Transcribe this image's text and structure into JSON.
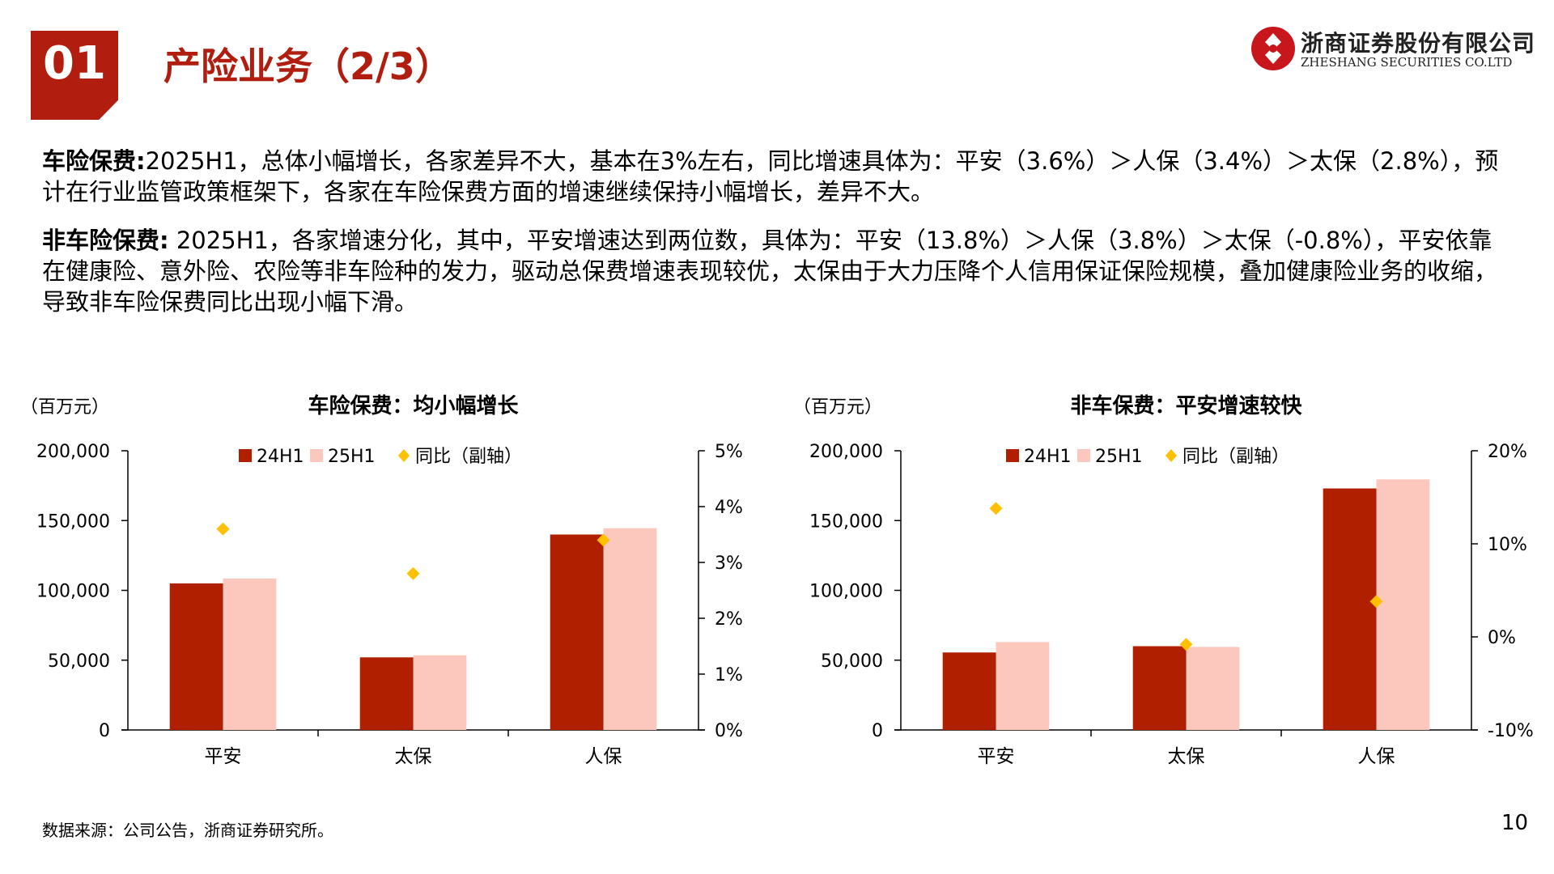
{
  "header": {
    "section_number": "01",
    "title": "产险业务（2/3）",
    "logo_cn": "浙商证券股份有限公司",
    "logo_en": "ZHESHANG SECURITIES CO.LTD"
  },
  "body": {
    "para1_label": "车险保费:",
    "para1_text": "2025H1，总体小幅增长，各家差异不大，基本在3%左右，同比增速具体为：平安（3.6%）＞人保（3.4%）＞太保（2.8%），预计在行业监管政策框架下，各家在车险保费方面的增速继续保持小幅增长，差异不大。",
    "para2_label": "非车险保费:",
    "para2_text": " 2025H1，各家增速分化，其中，平安增速达到两位数，具体为：平安（13.8%）＞人保（3.8%）＞太保（-0.8%），平安依靠在健康险、意外险、农险等非车险种的发力，驱动总保费增速表现较优，太保由于大力压降个人信用保证保险规模，叠加健康险业务的收缩，导致非车险保费同比出现小幅下滑。"
  },
  "colors": {
    "brand_red": "#b11e10",
    "bar_24h1": "#b01f00",
    "bar_25h1": "#fcc8bd",
    "yoy_marker": "#ffc000"
  },
  "chart_data": [
    {
      "type": "bar",
      "title": "车险保费：均小幅增长",
      "unit_label": "（百万元）",
      "categories": [
        "平安",
        "太保",
        "人保"
      ],
      "series": [
        {
          "name": "24H1",
          "values": [
            105000,
            52000,
            140000
          ]
        },
        {
          "name": "25H1",
          "values": [
            108500,
            53500,
            144500
          ]
        }
      ],
      "line_series": {
        "name": "同比（副轴）",
        "values": [
          3.6,
          2.8,
          3.4
        ],
        "axis": "secondary",
        "marker": "diamond"
      },
      "ylim": [
        0,
        200000
      ],
      "y_ticks": [
        0,
        50000,
        100000,
        150000,
        200000
      ],
      "y_tick_labels": [
        "0",
        "50,000",
        "100,000",
        "150,000",
        "200,000"
      ],
      "y2lim": [
        0,
        5
      ],
      "y2_ticks": [
        0,
        1,
        2,
        3,
        4,
        5
      ],
      "y2_tick_labels": [
        "0%",
        "1%",
        "2%",
        "3%",
        "4%",
        "5%"
      ],
      "legend": "top",
      "grid": false
    },
    {
      "type": "bar",
      "title": "非车保费：平安增速较快",
      "unit_label": "（百万元）",
      "categories": [
        "平安",
        "太保",
        "人保"
      ],
      "series": [
        {
          "name": "24H1",
          "values": [
            55500,
            60000,
            173000
          ]
        },
        {
          "name": "25H1",
          "values": [
            63000,
            59500,
            179500
          ]
        }
      ],
      "line_series": {
        "name": "同比（副轴）",
        "values": [
          13.8,
          -0.8,
          3.8
        ],
        "axis": "secondary",
        "marker": "diamond"
      },
      "ylim": [
        0,
        200000
      ],
      "y_ticks": [
        0,
        50000,
        100000,
        150000,
        200000
      ],
      "y_tick_labels": [
        "0",
        "50,000",
        "100,000",
        "150,000",
        "200,000"
      ],
      "y2lim": [
        -10,
        20
      ],
      "y2_ticks": [
        -10,
        0,
        10,
        20
      ],
      "y2_tick_labels": [
        "-10%",
        "0%",
        "10%",
        "20%"
      ],
      "legend": "top",
      "grid": false
    }
  ],
  "footer": {
    "source": "数据来源：公司公告，浙商证券研究所。",
    "page_number": "10"
  }
}
